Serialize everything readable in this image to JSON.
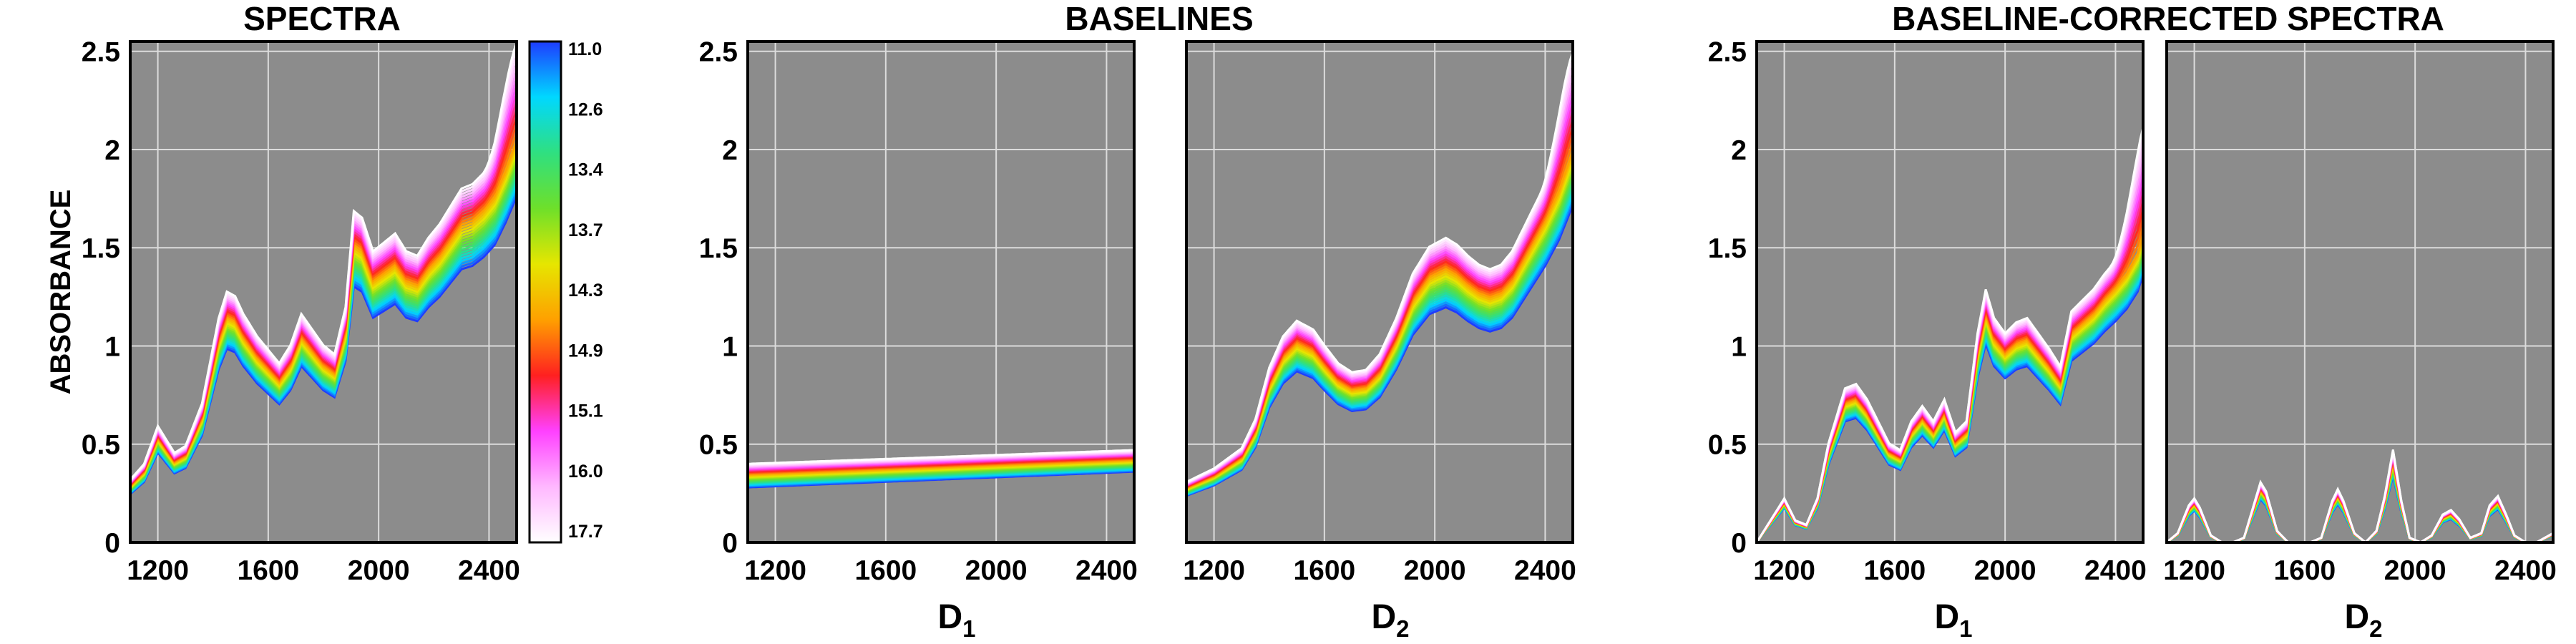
{
  "titles": {
    "spectra": "SPECTRA",
    "baselines": "BASELINES",
    "corrected": "BASELINE-CORRECTED SPECTRA"
  },
  "ylabel": "ABSORBANCE",
  "xlabels": {
    "d1_main": "D",
    "d1_sub": "1",
    "d2_main": "D",
    "d2_sub": "2"
  },
  "colors": {
    "panel_bg": "#8c8c8c",
    "grid": "#dcdcdc",
    "frame": "#000000"
  },
  "colorbar": {
    "ticks": [
      "11.0",
      "12.6",
      "13.4",
      "13.7",
      "14.3",
      "14.9",
      "15.1",
      "16.0",
      "17.7"
    ],
    "stops": [
      "#1e3cff",
      "#00d8ff",
      "#2fe080",
      "#6ee02a",
      "#e6e600",
      "#ffa000",
      "#ff2020",
      "#ff40ff",
      "#ffb8ff",
      "#ffffff"
    ]
  },
  "chart_data": [
    {
      "panel": "spectra",
      "type": "line",
      "title": "SPECTRA",
      "xlabel": "",
      "ylabel": "ABSORBANCE",
      "xlim": [
        1100,
        2500
      ],
      "ylim": [
        0,
        2.55
      ],
      "xticks": [
        1200,
        1600,
        2000,
        2400
      ],
      "yticks": [
        0,
        0.5,
        1,
        1.5,
        2,
        2.5
      ],
      "ytick_labels": [
        "0",
        "0.5",
        "1",
        "1.5",
        "2",
        "2.5"
      ],
      "n_series": 30,
      "mean_curve": {
        "x": [
          1100,
          1150,
          1200,
          1260,
          1300,
          1360,
          1420,
          1450,
          1480,
          1510,
          1560,
          1600,
          1640,
          1680,
          1720,
          1760,
          1800,
          1840,
          1880,
          1910,
          1940,
          1980,
          2020,
          2060,
          2100,
          2140,
          2180,
          2220,
          2260,
          2300,
          2340,
          2380,
          2420,
          2460,
          2500
        ],
        "y": [
          0.28,
          0.35,
          0.52,
          0.4,
          0.43,
          0.62,
          1.0,
          1.12,
          1.1,
          1.02,
          0.92,
          0.86,
          0.8,
          0.88,
          1.02,
          0.95,
          0.88,
          0.84,
          1.05,
          1.48,
          1.45,
          1.3,
          1.34,
          1.38,
          1.3,
          1.28,
          1.36,
          1.42,
          1.5,
          1.58,
          1.6,
          1.65,
          1.72,
          1.85,
          2.0
        ]
      },
      "spread": {
        "min": 0.88,
        "max": 1.14,
        "series_max_at_2500": 2.5
      }
    },
    {
      "panel": "baseline-d1",
      "type": "line",
      "title": "BASELINES",
      "xlabel": "D1",
      "xlim": [
        1100,
        2500
      ],
      "ylim": [
        0,
        2.55
      ],
      "xticks": [
        1200,
        1600,
        2000,
        2400
      ],
      "yticks": [
        0,
        0.5,
        1,
        1.5,
        2,
        2.5
      ],
      "ytick_labels": [
        "0",
        "0.5",
        "1",
        "1.5",
        "2",
        "2.5"
      ],
      "n_series": 30,
      "mean_curve": {
        "x": [
          1100,
          2500
        ],
        "y": [
          0.34,
          0.42
        ]
      },
      "spread": {
        "low": [
          0.28,
          0.36
        ],
        "high": [
          0.4,
          0.47
        ]
      }
    },
    {
      "panel": "baseline-d2",
      "type": "line",
      "xlabel": "D2",
      "xlim": [
        1100,
        2500
      ],
      "ylim": [
        0,
        2.55
      ],
      "xticks": [
        1200,
        1600,
        2000,
        2400
      ],
      "n_series": 30,
      "mean_curve": {
        "x": [
          1100,
          1200,
          1300,
          1350,
          1400,
          1450,
          1500,
          1560,
          1600,
          1650,
          1700,
          1750,
          1800,
          1860,
          1920,
          1980,
          2040,
          2080,
          2120,
          2160,
          2200,
          2240,
          2280,
          2320,
          2360,
          2400,
          2450,
          2500
        ],
        "y": [
          0.27,
          0.33,
          0.42,
          0.55,
          0.78,
          0.92,
          0.99,
          0.95,
          0.88,
          0.8,
          0.76,
          0.77,
          0.84,
          1.0,
          1.2,
          1.32,
          1.36,
          1.33,
          1.28,
          1.24,
          1.22,
          1.24,
          1.3,
          1.4,
          1.5,
          1.6,
          1.75,
          1.95
        ]
      },
      "spread": {
        "min": 0.88,
        "max": 1.14,
        "series_max_at_2500": 2.45
      }
    },
    {
      "panel": "corrected-d1",
      "type": "line",
      "title": "BASELINE-CORRECTED SPECTRA",
      "xlabel": "D1",
      "xlim": [
        1100,
        2500
      ],
      "ylim": [
        0,
        2.55
      ],
      "xticks": [
        1200,
        1600,
        2000,
        2400
      ],
      "yticks": [
        0,
        0.5,
        1,
        1.5,
        2,
        2.5
      ],
      "ytick_labels": [
        "0",
        "0.5",
        "1",
        "1.5",
        "2",
        "2.5"
      ],
      "n_series": 30,
      "mean_curve": {
        "x": [
          1100,
          1150,
          1200,
          1240,
          1280,
          1320,
          1360,
          1420,
          1460,
          1500,
          1540,
          1580,
          1620,
          1660,
          1700,
          1740,
          1780,
          1820,
          1860,
          1900,
          1930,
          1960,
          2000,
          2040,
          2080,
          2120,
          2160,
          2200,
          2240,
          2280,
          2320,
          2360,
          2400,
          2440,
          2480,
          2500
        ],
        "y": [
          0.0,
          0.1,
          0.2,
          0.1,
          0.08,
          0.2,
          0.45,
          0.7,
          0.72,
          0.65,
          0.55,
          0.45,
          0.42,
          0.55,
          0.62,
          0.55,
          0.65,
          0.5,
          0.55,
          0.95,
          1.15,
          1.02,
          0.95,
          1.0,
          1.02,
          0.95,
          0.88,
          0.8,
          1.05,
          1.1,
          1.15,
          1.22,
          1.28,
          1.35,
          1.45,
          1.55
        ]
      },
      "spread": {
        "min": 0.88,
        "max": 1.12,
        "series_max_at_2500": 2.05
      }
    },
    {
      "panel": "corrected-d2",
      "type": "line",
      "xlabel": "D2",
      "xlim": [
        1100,
        2500
      ],
      "ylim": [
        0,
        2.55
      ],
      "xticks": [
        1200,
        1600,
        2000,
        2400
      ],
      "n_series": 30,
      "mean_curve": {
        "x": [
          1100,
          1140,
          1180,
          1200,
          1220,
          1260,
          1300,
          1340,
          1380,
          1420,
          1440,
          1460,
          1500,
          1540,
          1580,
          1620,
          1660,
          1700,
          1720,
          1740,
          1780,
          1820,
          1860,
          1890,
          1920,
          1950,
          1980,
          2020,
          2060,
          2100,
          2130,
          2160,
          2200,
          2240,
          2270,
          2300,
          2330,
          2360,
          2400,
          2440,
          2470,
          2500
        ],
        "y": [
          0.0,
          0.04,
          0.16,
          0.19,
          0.15,
          0.03,
          0.0,
          0.0,
          0.02,
          0.18,
          0.26,
          0.22,
          0.05,
          0.0,
          0.0,
          0.0,
          0.02,
          0.18,
          0.23,
          0.18,
          0.04,
          0.0,
          0.05,
          0.2,
          0.4,
          0.18,
          0.02,
          0.0,
          0.03,
          0.12,
          0.14,
          0.1,
          0.02,
          0.04,
          0.16,
          0.2,
          0.12,
          0.03,
          0.0,
          0.0,
          0.02,
          0.04
        ]
      },
      "spread": {
        "min": 0.85,
        "max": 1.18
      }
    }
  ]
}
